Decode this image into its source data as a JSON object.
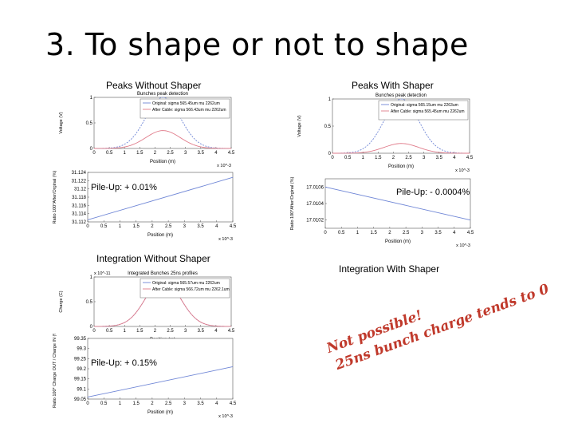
{
  "slide": {
    "title": "3. To shape or not to shape",
    "labels": {
      "peaks_without": "Peaks Without Shaper",
      "peaks_with": "Peaks With Shaper",
      "integration_without": "Integration Without Shaper",
      "integration_with": "Integration With Shaper"
    },
    "pileup": {
      "p1": "Pile-Up: + 0.01%",
      "p2": "Pile-Up: - 0.0004%",
      "p3": "Pile-Up: + 0.15%"
    },
    "conclusion": {
      "line1": "Not possible!",
      "line2": "25ns bunch charge tends to 0"
    }
  },
  "colors": {
    "blue_curve": "#6f86d6",
    "red_curve": "#e07b8a",
    "conclusion_text": "#c0392b"
  },
  "chart_data": [
    {
      "type": "line",
      "title": "Bunches peak detection",
      "xlabel": "Position (m)",
      "ylabel": "Voltage (V)",
      "x_exponent": "x 10^-3",
      "xlim": [
        0,
        4.5
      ],
      "ylim": [
        0,
        1
      ],
      "xticks": [
        "0",
        "0.5",
        "1",
        "1.5",
        "2",
        "2.5",
        "3",
        "3.5",
        "4",
        "4.5"
      ],
      "yticks": [
        "0",
        "0.5",
        "1"
      ],
      "series": [
        {
          "name": "Original: sigma 565.45um mu 2262um",
          "peak": 1.0,
          "mu": 2.262,
          "sigma": 0.565
        },
        {
          "name": "After Cable: sigma 566.43um mu 2262um",
          "peak": 0.35,
          "mu": 2.262,
          "sigma": 0.566
        }
      ]
    },
    {
      "type": "line",
      "title": "Bunches peak detection",
      "xlabel": "Position (m)",
      "ylabel": "Voltage (V)",
      "x_exponent": "x 10^-3",
      "xlim": [
        0,
        4.5
      ],
      "ylim": [
        0,
        1
      ],
      "xticks": [
        "0",
        "0.5",
        "1",
        "1.5",
        "2",
        "2.5",
        "3",
        "3.5",
        "4",
        "4.5"
      ],
      "yticks": [
        "0",
        "0.5",
        "1"
      ],
      "series": [
        {
          "name": "Original: sigma 565.15um mu 2263um",
          "peak": 1.0,
          "mu": 2.263,
          "sigma": 0.565
        },
        {
          "name": "After Cable: sigma 565.45um mu 2262um",
          "peak": 0.18,
          "mu": 2.262,
          "sigma": 0.565
        }
      ]
    },
    {
      "type": "line",
      "title": "",
      "xlabel": "Position (m)",
      "ylabel": "Ratio 100*After/Orginal (%)",
      "x_exponent": "x 10^-3",
      "xlim": [
        0,
        4.5
      ],
      "ylim": [
        31.112,
        31.124
      ],
      "xticks": [
        "0",
        "0.5",
        "1",
        "1.5",
        "2",
        "2.5",
        "3",
        "3.5",
        "4",
        "4.5"
      ],
      "yticks": [
        "31.112",
        "31.114",
        "31.116",
        "31.118",
        "31.12",
        "31.122",
        "31.124"
      ],
      "series": [
        {
          "name": "",
          "x": [
            0,
            4.5
          ],
          "y": [
            31.1125,
            31.1228
          ]
        }
      ]
    },
    {
      "type": "line",
      "title": "",
      "xlabel": "Position (m)",
      "ylabel": "Ratio 100*After/Orginal (%)",
      "x_exponent": "x 10^-3",
      "xlim": [
        0,
        4.5
      ],
      "ylim": [
        17.0101,
        17.0107
      ],
      "xticks": [
        "0",
        "0.5",
        "1",
        "1.5",
        "2",
        "2.5",
        "3",
        "3.5",
        "4",
        "4.5"
      ],
      "yticks": [
        "17.0102",
        "17.0104",
        "17.0106"
      ],
      "series": [
        {
          "name": "",
          "x": [
            0,
            4.5
          ],
          "y": [
            17.0106,
            17.0102
          ]
        }
      ]
    },
    {
      "type": "line",
      "title": "Integrated Bunches 25ns profiles",
      "xlabel": "Position (m)",
      "ylabel": "Charge (C)",
      "x_exponent": "x 10^-3",
      "y_exponent": "x 10^-11",
      "xlim": [
        0,
        4.5
      ],
      "ylim": [
        0,
        1
      ],
      "xticks": [
        "0",
        "0.5",
        "1",
        "1.5",
        "2",
        "2.5",
        "3",
        "3.5",
        "4",
        "4.5"
      ],
      "yticks": [
        "0",
        "0.5",
        "1"
      ],
      "series": [
        {
          "name": "Original: sigma 565.57um mu 2262um",
          "peak": 0.95,
          "mu": 2.262,
          "sigma": 0.566
        },
        {
          "name": "After Cable: sigma 566.72um mu 2262.1um",
          "peak": 0.95,
          "mu": 2.262,
          "sigma": 0.567
        }
      ]
    },
    {
      "type": "line",
      "title": "",
      "xlabel": "Position (m)",
      "ylabel": "Ratio 100* Charge OUT / Charge IN (%)",
      "x_exponent": "x 10^-3",
      "xlim": [
        0,
        4.5
      ],
      "ylim": [
        99.05,
        99.35
      ],
      "xticks": [
        "0",
        "0.5",
        "1",
        "1.5",
        "2",
        "2.5",
        "3",
        "3.5",
        "4",
        "4.5"
      ],
      "yticks": [
        "99.05",
        "99.1",
        "99.15",
        "99.2",
        "99.25",
        "99.3",
        "99.35"
      ],
      "series": [
        {
          "name": "",
          "x": [
            0,
            4.5
          ],
          "y": [
            99.06,
            99.21
          ]
        }
      ]
    }
  ]
}
